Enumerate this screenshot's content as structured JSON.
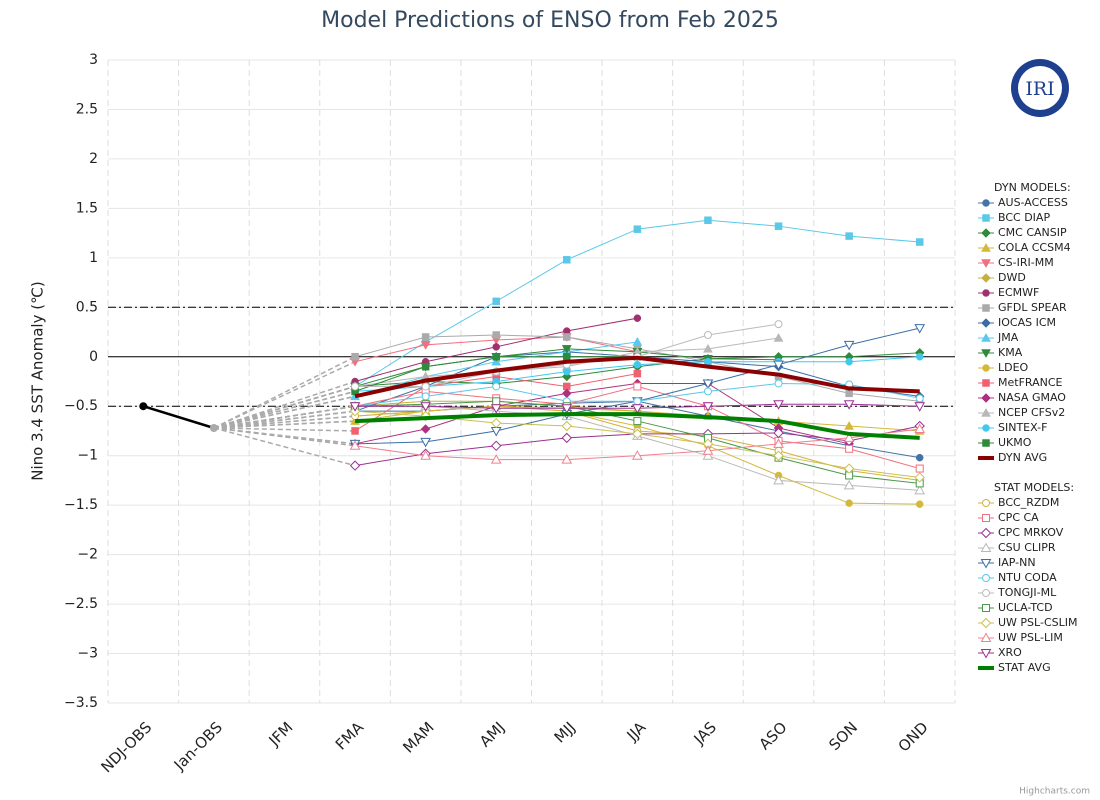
{
  "chart_data": {
    "type": "line",
    "title": "Model Predictions of ENSO from Feb 2025",
    "y_label": "Nino 3.4 SST Anomaly (℃)",
    "logo": "IRI",
    "credit": "Highcharts.com",
    "categories": [
      "NDJ-OBS",
      "Jan-OBS",
      "JFM",
      "FMA",
      "MAM",
      "AMJ",
      "MJJ",
      "JJA",
      "JAS",
      "ASO",
      "SON",
      "OND"
    ],
    "ylim": [
      -3.5,
      3
    ],
    "yticks": [
      3,
      2.5,
      2,
      1.5,
      1,
      0.5,
      0,
      {
        "value": -0.5,
        "label": "−0.5"
      },
      {
        "value": -1,
        "label": "−1"
      },
      {
        "value": -1.5,
        "label": "−1.5"
      },
      {
        "value": -2,
        "label": "−2"
      },
      {
        "value": -2.5,
        "label": "−2.5"
      },
      {
        "value": -3,
        "label": "−3"
      },
      {
        "value": -3.5,
        "label": "−3.5"
      }
    ],
    "grid": true,
    "reference_lines": [
      {
        "value": 0.5,
        "style": "dashdot"
      },
      {
        "value": 0,
        "style": "solid"
      },
      {
        "value": -0.5,
        "style": "dashdot"
      }
    ],
    "observed": {
      "color": "#000000",
      "values": [
        -0.5,
        -0.72,
        null,
        null,
        null,
        null,
        null,
        null,
        null,
        null,
        null,
        null
      ]
    },
    "legend_position": "right",
    "groups": [
      {
        "title": "DYN MODELS:",
        "series": [
          {
            "name": "AUS-ACCESS",
            "color": "#4572A7",
            "marker": "circle",
            "filled": true,
            "values": [
              null,
              null,
              null,
              -0.55,
              -0.55,
              -0.5,
              -0.47,
              -0.45,
              -0.6,
              -0.75,
              -0.9,
              -1.02
            ]
          },
          {
            "name": "BCC DIAP",
            "color": "#5BC8E8",
            "marker": "square",
            "filled": true,
            "values": [
              null,
              null,
              null,
              -0.3,
              0.15,
              0.56,
              0.98,
              1.29,
              1.38,
              1.32,
              1.22,
              1.16
            ]
          },
          {
            "name": "CMC CANSIP",
            "color": "#2E8B3A",
            "marker": "diamond",
            "filled": true,
            "values": [
              null,
              null,
              null,
              -0.3,
              -0.25,
              -0.27,
              -0.2,
              -0.1,
              -0.02,
              0.0,
              0.0,
              0.04
            ]
          },
          {
            "name": "COLA CCSM4",
            "color": "#D4B83A",
            "marker": "triangle",
            "filled": true,
            "values": [
              null,
              null,
              null,
              -0.65,
              -0.55,
              -0.5,
              -0.52,
              -0.55,
              -0.6,
              -0.65,
              -0.7,
              -0.75
            ]
          },
          {
            "name": "CS-IRI-MM",
            "color": "#F07080",
            "marker": "triangle-down",
            "filled": true,
            "values": [
              null,
              null,
              null,
              -0.05,
              0.12,
              0.17,
              0.2,
              0.05,
              null,
              null,
              null,
              null
            ]
          },
          {
            "name": "DWD",
            "color": "#C8B040",
            "marker": "diamond",
            "filled": true,
            "values": [
              null,
              null,
              null,
              -0.5,
              -0.45,
              -0.45,
              -0.5,
              -0.55,
              null,
              null,
              null,
              null
            ]
          },
          {
            "name": "ECMWF",
            "color": "#A03070",
            "marker": "circle",
            "filled": true,
            "values": [
              null,
              null,
              null,
              -0.25,
              -0.05,
              0.1,
              0.26,
              0.39,
              null,
              null,
              null,
              null
            ]
          },
          {
            "name": "GFDL SPEAR",
            "color": "#AAAAAA",
            "marker": "square",
            "filled": true,
            "values": [
              null,
              null,
              null,
              0.0,
              0.2,
              0.22,
              0.2,
              0.08,
              -0.05,
              -0.2,
              -0.37,
              -0.45
            ]
          },
          {
            "name": "IOCAS ICM",
            "color": "#3A6EA5",
            "marker": "diamond",
            "filled": true,
            "values": [
              null,
              null,
              null,
              -0.55,
              -0.3,
              0.0,
              0.05,
              0.0,
              -0.05,
              -0.1,
              -0.3,
              -0.4
            ]
          },
          {
            "name": "JMA",
            "color": "#5BC8F0",
            "marker": "triangle",
            "filled": true,
            "values": [
              null,
              null,
              null,
              -0.4,
              -0.2,
              -0.05,
              0.05,
              0.15,
              null,
              null,
              null,
              null
            ]
          },
          {
            "name": "KMA",
            "color": "#2E8B3A",
            "marker": "triangle-down",
            "filled": true,
            "values": [
              null,
              null,
              null,
              -0.3,
              -0.1,
              0.0,
              0.08,
              0.05,
              -0.02,
              -0.03,
              null,
              null
            ]
          },
          {
            "name": "LDEO",
            "color": "#D4B83A",
            "marker": "circle",
            "filled": true,
            "values": [
              null,
              null,
              null,
              -0.6,
              -0.55,
              -0.5,
              -0.55,
              -0.7,
              -0.9,
              -1.2,
              -1.48,
              -1.49
            ]
          },
          {
            "name": "MetFRANCE",
            "color": "#F06070",
            "marker": "square",
            "filled": true,
            "values": [
              null,
              null,
              null,
              -0.75,
              -0.3,
              -0.2,
              -0.3,
              -0.17,
              null,
              null,
              null,
              null
            ]
          },
          {
            "name": "NASA GMAO",
            "color": "#B03080",
            "marker": "diamond",
            "filled": true,
            "values": [
              null,
              null,
              null,
              -0.88,
              -0.73,
              -0.5,
              -0.37,
              -0.27,
              -0.27,
              -0.72,
              -0.88,
              null
            ]
          },
          {
            "name": "NCEP CFSv2",
            "color": "#B8B8B8",
            "marker": "triangle",
            "filled": true,
            "values": [
              null,
              null,
              null,
              -0.3,
              -0.2,
              -0.15,
              -0.1,
              0.05,
              0.08,
              0.19,
              null,
              null
            ]
          },
          {
            "name": "SINTEX-F",
            "color": "#40C8F0",
            "marker": "circle",
            "filled": true,
            "values": [
              null,
              null,
              null,
              -0.35,
              -0.3,
              -0.25,
              -0.15,
              -0.08,
              -0.05,
              -0.05,
              -0.05,
              0.0
            ]
          },
          {
            "name": "UKMO",
            "color": "#2E8B3A",
            "marker": "square",
            "filled": true,
            "values": [
              null,
              null,
              null,
              -0.35,
              -0.1,
              0.0,
              0.0,
              0.0,
              null,
              null,
              null,
              null
            ]
          },
          {
            "name": "DYN AVG",
            "color": "#8B0000",
            "marker": "none",
            "width": 4,
            "values": [
              null,
              null,
              null,
              -0.4,
              -0.24,
              -0.14,
              -0.05,
              -0.01,
              -0.1,
              -0.18,
              -0.32,
              -0.35
            ]
          }
        ]
      },
      {
        "title": "STAT MODELS:",
        "series": [
          {
            "name": "BCC_RZDM",
            "color": "#D4B040",
            "marker": "circle",
            "filled": false,
            "values": [
              null,
              null,
              null,
              -0.6,
              -0.55,
              -0.5,
              -0.55,
              -0.75,
              -0.8,
              -0.95,
              -1.15,
              -1.25
            ]
          },
          {
            "name": "CPC CA",
            "color": "#F07080",
            "marker": "square",
            "filled": false,
            "values": [
              null,
              null,
              null,
              -0.5,
              -0.35,
              -0.42,
              -0.48,
              -0.3,
              -0.5,
              -0.85,
              -0.93,
              -1.13
            ]
          },
          {
            "name": "CPC MRKOV",
            "color": "#9B3090",
            "marker": "diamond",
            "filled": false,
            "values": [
              null,
              null,
              null,
              -1.1,
              -0.98,
              -0.9,
              -0.82,
              -0.78,
              -0.78,
              -0.77,
              -0.85,
              -0.7
            ]
          },
          {
            "name": "CSU CLIPR",
            "color": "#B8B8B8",
            "marker": "triangle",
            "filled": false,
            "values": [
              null,
              null,
              null,
              -0.5,
              -0.5,
              -0.55,
              -0.6,
              -0.8,
              -1.0,
              -1.25,
              -1.3,
              -1.35
            ]
          },
          {
            "name": "IAP-NN",
            "color": "#3A6EA5",
            "marker": "triangle-down",
            "filled": false,
            "values": [
              null,
              null,
              null,
              -0.88,
              -0.86,
              -0.75,
              -0.58,
              -0.45,
              -0.27,
              -0.08,
              0.12,
              0.29
            ]
          },
          {
            "name": "NTU CODA",
            "color": "#5BC8E8",
            "marker": "circle",
            "filled": false,
            "values": [
              null,
              null,
              null,
              -0.5,
              -0.4,
              -0.3,
              -0.45,
              -0.45,
              -0.35,
              -0.27,
              -0.28,
              -0.42
            ]
          },
          {
            "name": "TONGJI-ML",
            "color": "#BBBBBB",
            "marker": "circle",
            "filled": false,
            "values": [
              null,
              null,
              null,
              -0.3,
              -0.3,
              -0.15,
              -0.08,
              0.0,
              0.22,
              0.33,
              null,
              null
            ]
          },
          {
            "name": "UCLA-TCD",
            "color": "#4A9A4A",
            "marker": "square",
            "filled": false,
            "values": [
              null,
              null,
              null,
              -0.5,
              -0.48,
              -0.45,
              -0.5,
              -0.65,
              -0.82,
              -1.02,
              -1.2,
              -1.28
            ]
          },
          {
            "name": "UW PSL-CSLIM",
            "color": "#C8C050",
            "marker": "diamond",
            "filled": false,
            "values": [
              null,
              null,
              null,
              -0.55,
              -0.6,
              -0.67,
              -0.7,
              -0.78,
              -0.88,
              -1.0,
              -1.13,
              -1.22
            ]
          },
          {
            "name": "UW PSL-LIM",
            "color": "#F08090",
            "marker": "triangle",
            "filled": false,
            "values": [
              null,
              null,
              null,
              -0.9,
              -1.0,
              -1.04,
              -1.04,
              -1.0,
              -0.95,
              -0.88,
              -0.82,
              -0.73
            ]
          },
          {
            "name": "XRO",
            "color": "#9B3090",
            "marker": "triangle-down",
            "filled": false,
            "values": [
              null,
              null,
              null,
              -0.5,
              -0.5,
              -0.52,
              -0.52,
              -0.52,
              -0.5,
              -0.48,
              -0.48,
              -0.5
            ]
          },
          {
            "name": "STAT AVG",
            "color": "#008000",
            "marker": "none",
            "width": 4,
            "values": [
              null,
              null,
              null,
              -0.65,
              -0.62,
              -0.59,
              -0.58,
              -0.58,
              -0.61,
              -0.65,
              -0.78,
              -0.82
            ]
          }
        ]
      }
    ]
  }
}
